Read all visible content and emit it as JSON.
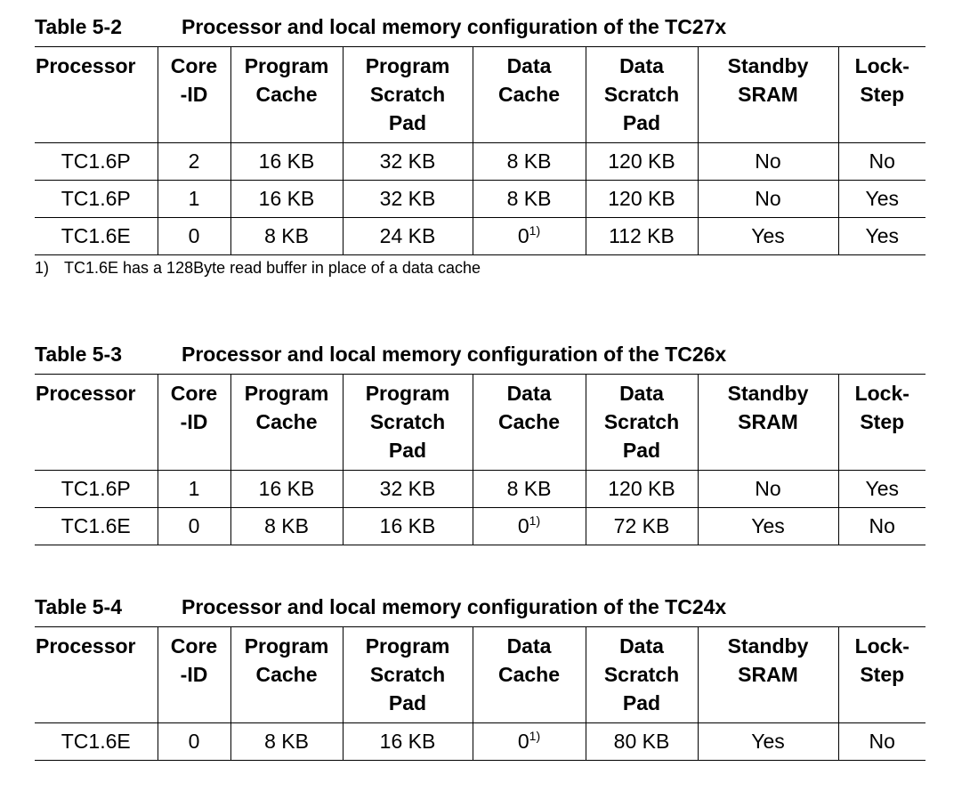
{
  "headers": [
    [
      "Processor"
    ],
    [
      "Core",
      "-ID"
    ],
    [
      "Program",
      "Cache"
    ],
    [
      "Program",
      "Scratch",
      "Pad"
    ],
    [
      "Data",
      "Cache"
    ],
    [
      "Data",
      "Scratch",
      "Pad"
    ],
    [
      "Standby",
      "SRAM"
    ],
    [
      "Lock-",
      "Step"
    ]
  ],
  "footnote_marker": "1)",
  "tables": [
    {
      "number": "Table 5-2",
      "title": "Processor and local memory configuration of the TC27x",
      "rows": [
        [
          "TC1.6P",
          "2",
          "16 KB",
          "32 KB",
          "8 KB",
          "120 KB",
          "No",
          "No"
        ],
        [
          "TC1.6P",
          "1",
          "16 KB",
          "32 KB",
          "8 KB",
          "120 KB",
          "No",
          "Yes"
        ],
        [
          "TC1.6E",
          "0",
          "8 KB",
          "24 KB",
          "0",
          "112 KB",
          "Yes",
          "Yes"
        ]
      ],
      "footnote": {
        "marker": "1)",
        "text": "TC1.6E has a 128Byte read buffer in place of a data cache"
      }
    },
    {
      "number": "Table 5-3",
      "title": "Processor and local memory configuration of the TC26x",
      "rows": [
        [
          "TC1.6P",
          "1",
          "16 KB",
          "32 KB",
          "8 KB",
          "120 KB",
          "No",
          "Yes"
        ],
        [
          "TC1.6E",
          "0",
          "8 KB",
          "16 KB",
          "0",
          "72 KB",
          "Yes",
          "No"
        ]
      ]
    },
    {
      "number": "Table 5-4",
      "title": "Processor and local memory configuration of the TC24x",
      "rows": [
        [
          "TC1.6E",
          "0",
          "8 KB",
          "16 KB",
          "0",
          "80 KB",
          "Yes",
          "No"
        ]
      ]
    }
  ]
}
